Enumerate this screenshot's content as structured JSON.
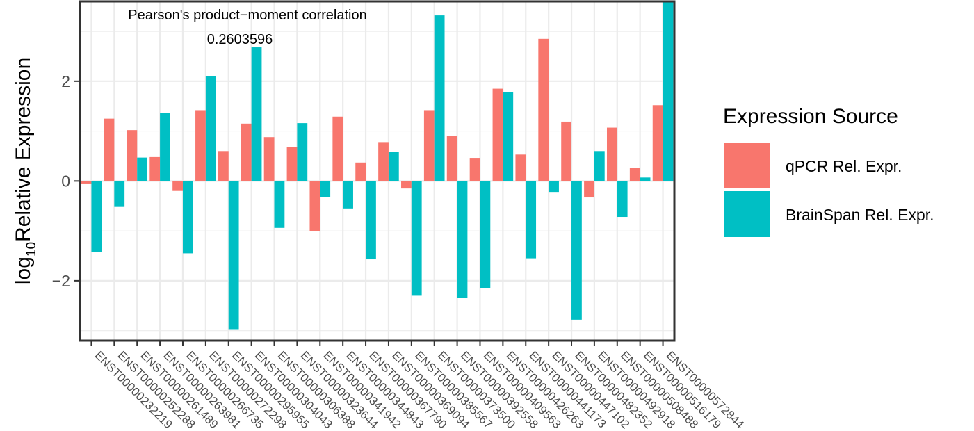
{
  "chart_data": {
    "type": "bar",
    "ylabel_prefix": "log",
    "ylabel_subscript": "10",
    "ylabel_main": "Relative Expression",
    "ylim": [
      -3.2,
      3.6
    ],
    "yticks": [
      -2,
      0,
      2
    ],
    "ytick_labels": [
      "−2",
      "0",
      "2"
    ],
    "grid": true,
    "legend_position": "right",
    "legend_title": "Expression Source",
    "annotation_line1": "Pearson's product−moment correlation",
    "annotation_line2": "0.2603596",
    "categories": [
      "ENST00000232219",
      "ENST00000252288",
      "ENST00000261489",
      "ENST00000263981",
      "ENST00000266735",
      "ENST00000272298",
      "ENST00000295955",
      "ENST00000304043",
      "ENST00000306388",
      "ENST00000323644",
      "ENST00000341942",
      "ENST00000344843",
      "ENST00000367790",
      "ENST00000369094",
      "ENST00000385567",
      "ENST00000373500",
      "ENST00000392558",
      "ENST00000409563",
      "ENST00000426263",
      "ENST00000441173",
      "ENST00000447102",
      "ENST00000482352",
      "ENST00000492918",
      "ENST00000508488",
      "ENST00000516179",
      "ENST00000572844"
    ],
    "series": [
      {
        "name": "qPCR Rel. Expr.",
        "color": "#F8766D",
        "values": [
          -0.05,
          1.25,
          1.02,
          0.48,
          -0.2,
          1.42,
          0.6,
          1.15,
          0.88,
          0.68,
          -1.0,
          1.29,
          0.37,
          0.78,
          -0.15,
          1.42,
          0.9,
          0.45,
          1.85,
          0.53,
          2.85,
          1.19,
          -0.33,
          1.07,
          0.26,
          1.52
        ]
      },
      {
        "name": "BrainSpan Rel. Expr.",
        "color": "#00BFC4",
        "values": [
          -1.42,
          -0.52,
          0.47,
          1.37,
          -1.45,
          2.1,
          -2.97,
          2.68,
          -0.94,
          1.16,
          -0.32,
          -0.55,
          -1.57,
          0.58,
          -2.3,
          3.32,
          -2.35,
          -2.15,
          1.78,
          -1.55,
          -0.22,
          -2.78,
          0.6,
          -0.72,
          0.07,
          3.6
        ]
      }
    ]
  }
}
